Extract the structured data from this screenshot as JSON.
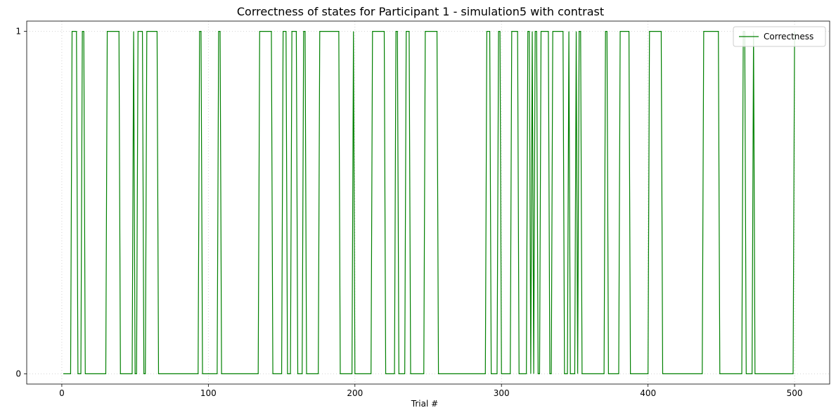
{
  "chart_data": {
    "type": "line",
    "title": "Correctness of states for Participant 1 - simulation5 with contrast",
    "xlabel": "Trial #",
    "ylabel": "",
    "xlim": [
      -23.95,
      523.95
    ],
    "ylim": [
      -0.03,
      1.03
    ],
    "xticks": [
      0,
      100,
      200,
      300,
      400,
      500
    ],
    "yticks": [
      0,
      1
    ],
    "grid": true,
    "legend": "top-right",
    "series": [
      {
        "name": "Correctness",
        "color": "#008000",
        "segments_one": [
          [
            7,
            10
          ],
          [
            14,
            15
          ],
          [
            31,
            39
          ],
          [
            49,
            49
          ],
          [
            52,
            55
          ],
          [
            58,
            65
          ],
          [
            94,
            95
          ],
          [
            107,
            108
          ],
          [
            135,
            143
          ],
          [
            151,
            153
          ],
          [
            157,
            160
          ],
          [
            165,
            166
          ],
          [
            176,
            189
          ],
          [
            199,
            199
          ],
          [
            212,
            220
          ],
          [
            228,
            229
          ],
          [
            235,
            237
          ],
          [
            248,
            256
          ],
          [
            290,
            292
          ],
          [
            298,
            299
          ],
          [
            307,
            311
          ],
          [
            318,
            319
          ],
          [
            321,
            321
          ],
          [
            323,
            324
          ],
          [
            327,
            332
          ],
          [
            335,
            342
          ],
          [
            346,
            346
          ],
          [
            351,
            351
          ],
          [
            353,
            354
          ],
          [
            371,
            372
          ],
          [
            381,
            387
          ],
          [
            401,
            409
          ],
          [
            438,
            448
          ],
          [
            465,
            466
          ],
          [
            472,
            472
          ],
          [
            500,
            500
          ]
        ],
        "x_range": [
          1,
          500
        ]
      }
    ]
  }
}
